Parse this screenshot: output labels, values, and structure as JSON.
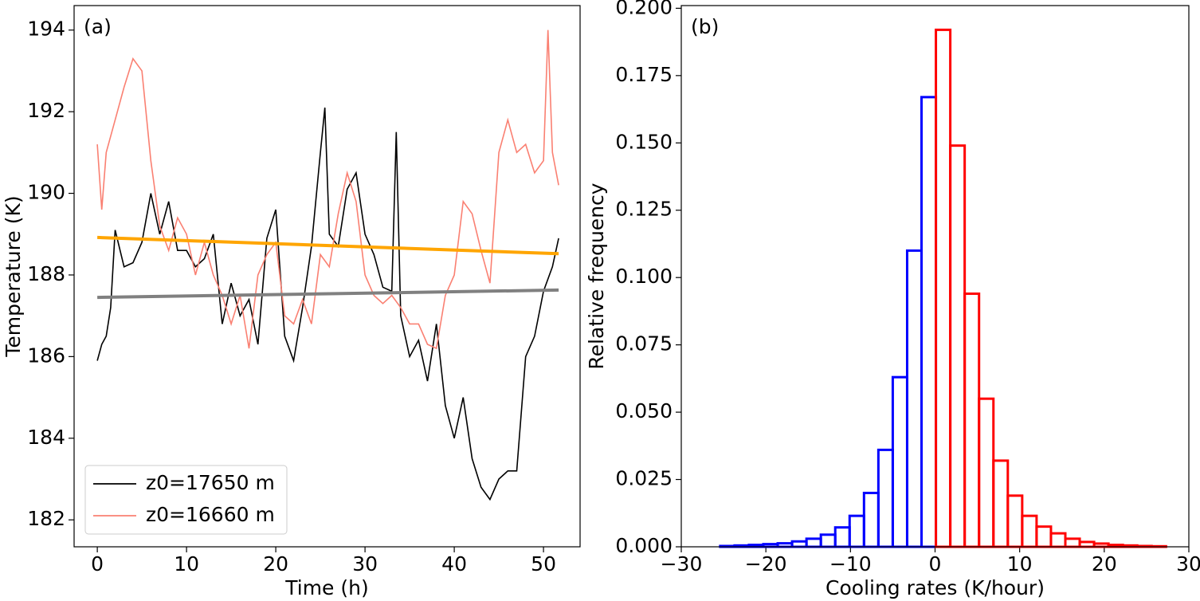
{
  "chart_data": [
    {
      "type": "line",
      "annotation": "(a)",
      "xlabel": "Time (h)",
      "ylabel": "Temperature (K)",
      "xlim": [
        -2.6,
        54.1
      ],
      "ylim": [
        181.34,
        194.6
      ],
      "xticks": [
        0,
        10,
        20,
        30,
        40,
        50
      ],
      "yticks": [
        182,
        184,
        186,
        188,
        190,
        192,
        194
      ],
      "legend": "lower left",
      "series": [
        {
          "name": "z0=17650 m",
          "color": "#000000",
          "x": [
            0,
            0.5,
            1,
            1.5,
            2,
            3,
            4,
            5,
            6,
            7,
            8,
            9,
            10,
            11,
            12,
            13,
            14,
            15,
            16,
            17,
            18,
            19,
            20,
            21,
            22,
            23,
            24,
            25,
            25.5,
            26,
            27,
            28,
            29,
            30,
            31,
            32,
            33,
            33.5,
            34,
            35,
            36,
            37,
            38,
            39,
            40,
            41,
            42,
            43,
            44,
            45,
            46,
            47,
            48,
            49,
            50,
            51,
            51.7
          ],
          "values": [
            185.9,
            186.3,
            186.5,
            187.2,
            189.1,
            188.2,
            188.3,
            188.8,
            190.0,
            189.0,
            189.8,
            188.6,
            188.6,
            188.2,
            188.4,
            189.0,
            186.8,
            187.8,
            187.0,
            187.4,
            186.3,
            188.9,
            189.6,
            186.5,
            185.9,
            187.2,
            188.7,
            191.0,
            192.1,
            189.0,
            188.7,
            190.1,
            190.5,
            189.0,
            188.5,
            187.7,
            187.6,
            191.5,
            187.0,
            186.0,
            186.4,
            185.4,
            186.8,
            184.8,
            184.0,
            185.0,
            183.5,
            182.8,
            182.5,
            183.0,
            183.2,
            183.2,
            186.0,
            186.5,
            187.6,
            188.2,
            188.9
          ]
        },
        {
          "name": "z0=16660 m",
          "color": "#fa8072",
          "x": [
            0,
            0.5,
            1,
            2,
            3,
            4,
            5,
            6,
            7,
            8,
            9,
            10,
            11,
            12,
            13,
            14,
            15,
            16,
            17,
            18,
            19,
            20,
            21,
            22,
            23,
            24,
            25,
            26,
            27,
            28,
            29,
            30,
            31,
            32,
            33,
            34,
            35,
            36,
            37,
            38,
            39,
            40,
            41,
            42,
            43,
            44,
            45,
            46,
            47,
            48,
            49,
            50,
            50.5,
            51,
            51.7
          ],
          "values": [
            191.2,
            189.6,
            191.0,
            191.8,
            192.6,
            193.3,
            193.0,
            190.8,
            189.2,
            188.6,
            189.4,
            189.0,
            188.0,
            188.8,
            188.0,
            187.5,
            186.8,
            187.5,
            186.2,
            188.0,
            188.5,
            188.8,
            187.0,
            186.8,
            187.4,
            186.8,
            188.5,
            188.2,
            189.5,
            190.5,
            189.8,
            188.0,
            187.5,
            187.3,
            187.5,
            187.2,
            186.8,
            186.8,
            186.3,
            186.2,
            187.5,
            188.0,
            189.8,
            189.5,
            188.6,
            187.8,
            191.0,
            191.8,
            191.0,
            191.2,
            190.5,
            190.8,
            194.0,
            191.0,
            190.2
          ]
        },
        {
          "color": "#ffa500",
          "x": [
            0,
            51.7
          ],
          "values": [
            188.92,
            188.52
          ]
        },
        {
          "color": "#808080",
          "x": [
            0,
            51.7
          ],
          "values": [
            187.45,
            187.63
          ]
        }
      ]
    },
    {
      "type": "histogram",
      "annotation": "(b)",
      "xlabel": "Cooling rates (K/hour)",
      "ylabel": "Relative frequency",
      "xlim": [
        -30,
        30
      ],
      "ylim": [
        0,
        0.201
      ],
      "xticks": [
        {
          "value": -30,
          "label": "−30"
        },
        {
          "value": -20,
          "label": "−20"
        },
        {
          "value": -10,
          "label": "−10"
        },
        0,
        10,
        20,
        30
      ],
      "yticks": [
        {
          "value": 0,
          "label": "0.000"
        },
        0.025,
        {
          "value": 0.05,
          "label": "0.050"
        },
        0.075,
        {
          "value": 0.1,
          "label": "0.100"
        },
        0.125,
        {
          "value": 0.15,
          "label": "0.150"
        },
        0.175,
        {
          "value": 0.2,
          "label": "0.200"
        }
      ],
      "series": [
        {
          "color": "#0000ff",
          "bins": [
            -25.4,
            -23.7,
            -22.0,
            -20.3,
            -18.6,
            -16.9,
            -15.2,
            -13.5,
            -11.8,
            -10.1,
            -8.4,
            -6.7,
            -5.0,
            -3.3,
            -1.6,
            0.1
          ],
          "values": [
            0.0003,
            0.0005,
            0.0007,
            0.001,
            0.0013,
            0.002,
            0.003,
            0.0045,
            0.0072,
            0.0115,
            0.02,
            0.036,
            0.063,
            0.11,
            0.167
          ]
        },
        {
          "color": "#ff0000",
          "bins": [
            0.1,
            1.8,
            3.5,
            5.2,
            6.9,
            8.6,
            10.3,
            12.0,
            13.7,
            15.4,
            17.1,
            18.8,
            20.5,
            22.2,
            23.9,
            25.6,
            27.3
          ],
          "values": [
            0.192,
            0.149,
            0.094,
            0.055,
            0.032,
            0.019,
            0.0115,
            0.0075,
            0.005,
            0.003,
            0.0018,
            0.0012,
            0.0007,
            0.0005,
            0.0003,
            0.0002
          ]
        }
      ]
    }
  ]
}
